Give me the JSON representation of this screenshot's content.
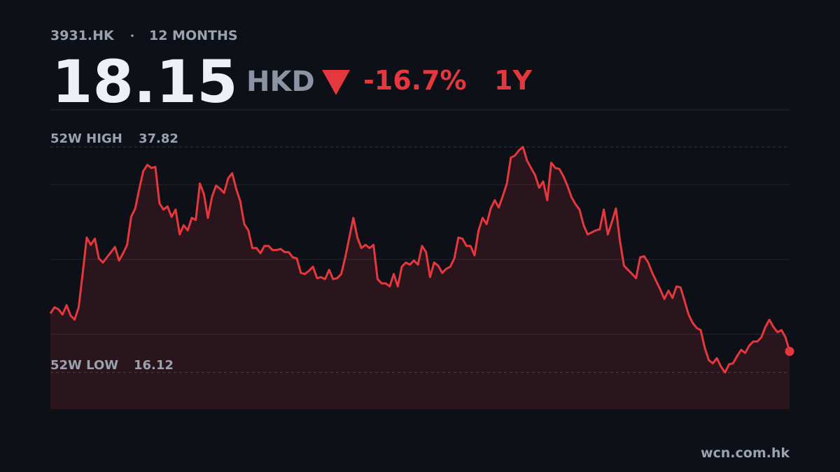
{
  "header": {
    "ticker": "3931.HK",
    "period": "12 MONTHS",
    "price": 18.15,
    "currency": "HKD",
    "change": {
      "value": -16.7,
      "label": "-16.7%"
    },
    "range": "1Y"
  },
  "chart_data": {
    "type": "area",
    "color": "#e5383e",
    "values": [
      21.8,
      22.4,
      22.2,
      21.7,
      22.6,
      21.6,
      21.2,
      22.4,
      25.7,
      29.1,
      28.4,
      29.0,
      27.1,
      26.7,
      27.2,
      27.7,
      28.2,
      26.9,
      27.6,
      28.4,
      31.1,
      31.9,
      33.8,
      35.5,
      36.1,
      35.8,
      35.9,
      32.4,
      31.8,
      32.1,
      31.1,
      31.8,
      29.4,
      30.3,
      29.8,
      31.0,
      30.8,
      34.3,
      33.3,
      31.0,
      33.0,
      34.1,
      33.8,
      33.4,
      34.8,
      35.3,
      33.8,
      32.6,
      30.4,
      29.8,
      28.1,
      28.1,
      27.6,
      28.3,
      28.3,
      27.9,
      27.9,
      28.0,
      27.7,
      27.7,
      27.2,
      27.1,
      25.7,
      25.6,
      25.9,
      26.3,
      25.2,
      25.3,
      25.1,
      26.0,
      25.1,
      25.2,
      25.6,
      27.2,
      29.1,
      31.0,
      29.1,
      28.1,
      28.4,
      28.1,
      28.4,
      25.1,
      24.7,
      24.7,
      24.4,
      25.6,
      24.4,
      26.3,
      26.7,
      26.5,
      26.9,
      26.5,
      28.3,
      27.7,
      25.3,
      26.7,
      26.4,
      25.7,
      26.1,
      26.3,
      27.1,
      29.1,
      29.0,
      28.3,
      28.3,
      27.4,
      29.8,
      31.0,
      30.4,
      31.9,
      32.7,
      32.0,
      33.1,
      34.3,
      36.8,
      37.0,
      37.5,
      37.82,
      36.5,
      35.8,
      35.1,
      33.9,
      34.5,
      32.7,
      36.3,
      35.8,
      35.7,
      35.0,
      34.1,
      33.0,
      32.3,
      31.8,
      30.3,
      29.4,
      29.6,
      29.8,
      29.9,
      31.8,
      29.4,
      30.6,
      31.9,
      28.8,
      26.4,
      26.0,
      25.6,
      25.2,
      27.2,
      27.3,
      26.7,
      25.7,
      24.9,
      24.1,
      23.2,
      24.0,
      23.3,
      24.4,
      24.3,
      23.0,
      21.7,
      20.9,
      20.4,
      20.2,
      18.5,
      17.3,
      17.0,
      17.5,
      16.7,
      16.12,
      16.9,
      17.0,
      17.7,
      18.3,
      18.0,
      18.7,
      19.1,
      19.1,
      19.5,
      20.5,
      21.2,
      20.5,
      20.0,
      20.2,
      19.5,
      18.15
    ],
    "ylim": [
      12.6,
      41.4
    ],
    "yticks": [
      19.8,
      27.0,
      34.2
    ],
    "grid": true,
    "high": {
      "label": "52W HIGH",
      "value": 37.82
    },
    "low": {
      "label": "52W LOW",
      "value": 16.12
    }
  },
  "footer": {
    "source": "wcn.com.hk"
  }
}
